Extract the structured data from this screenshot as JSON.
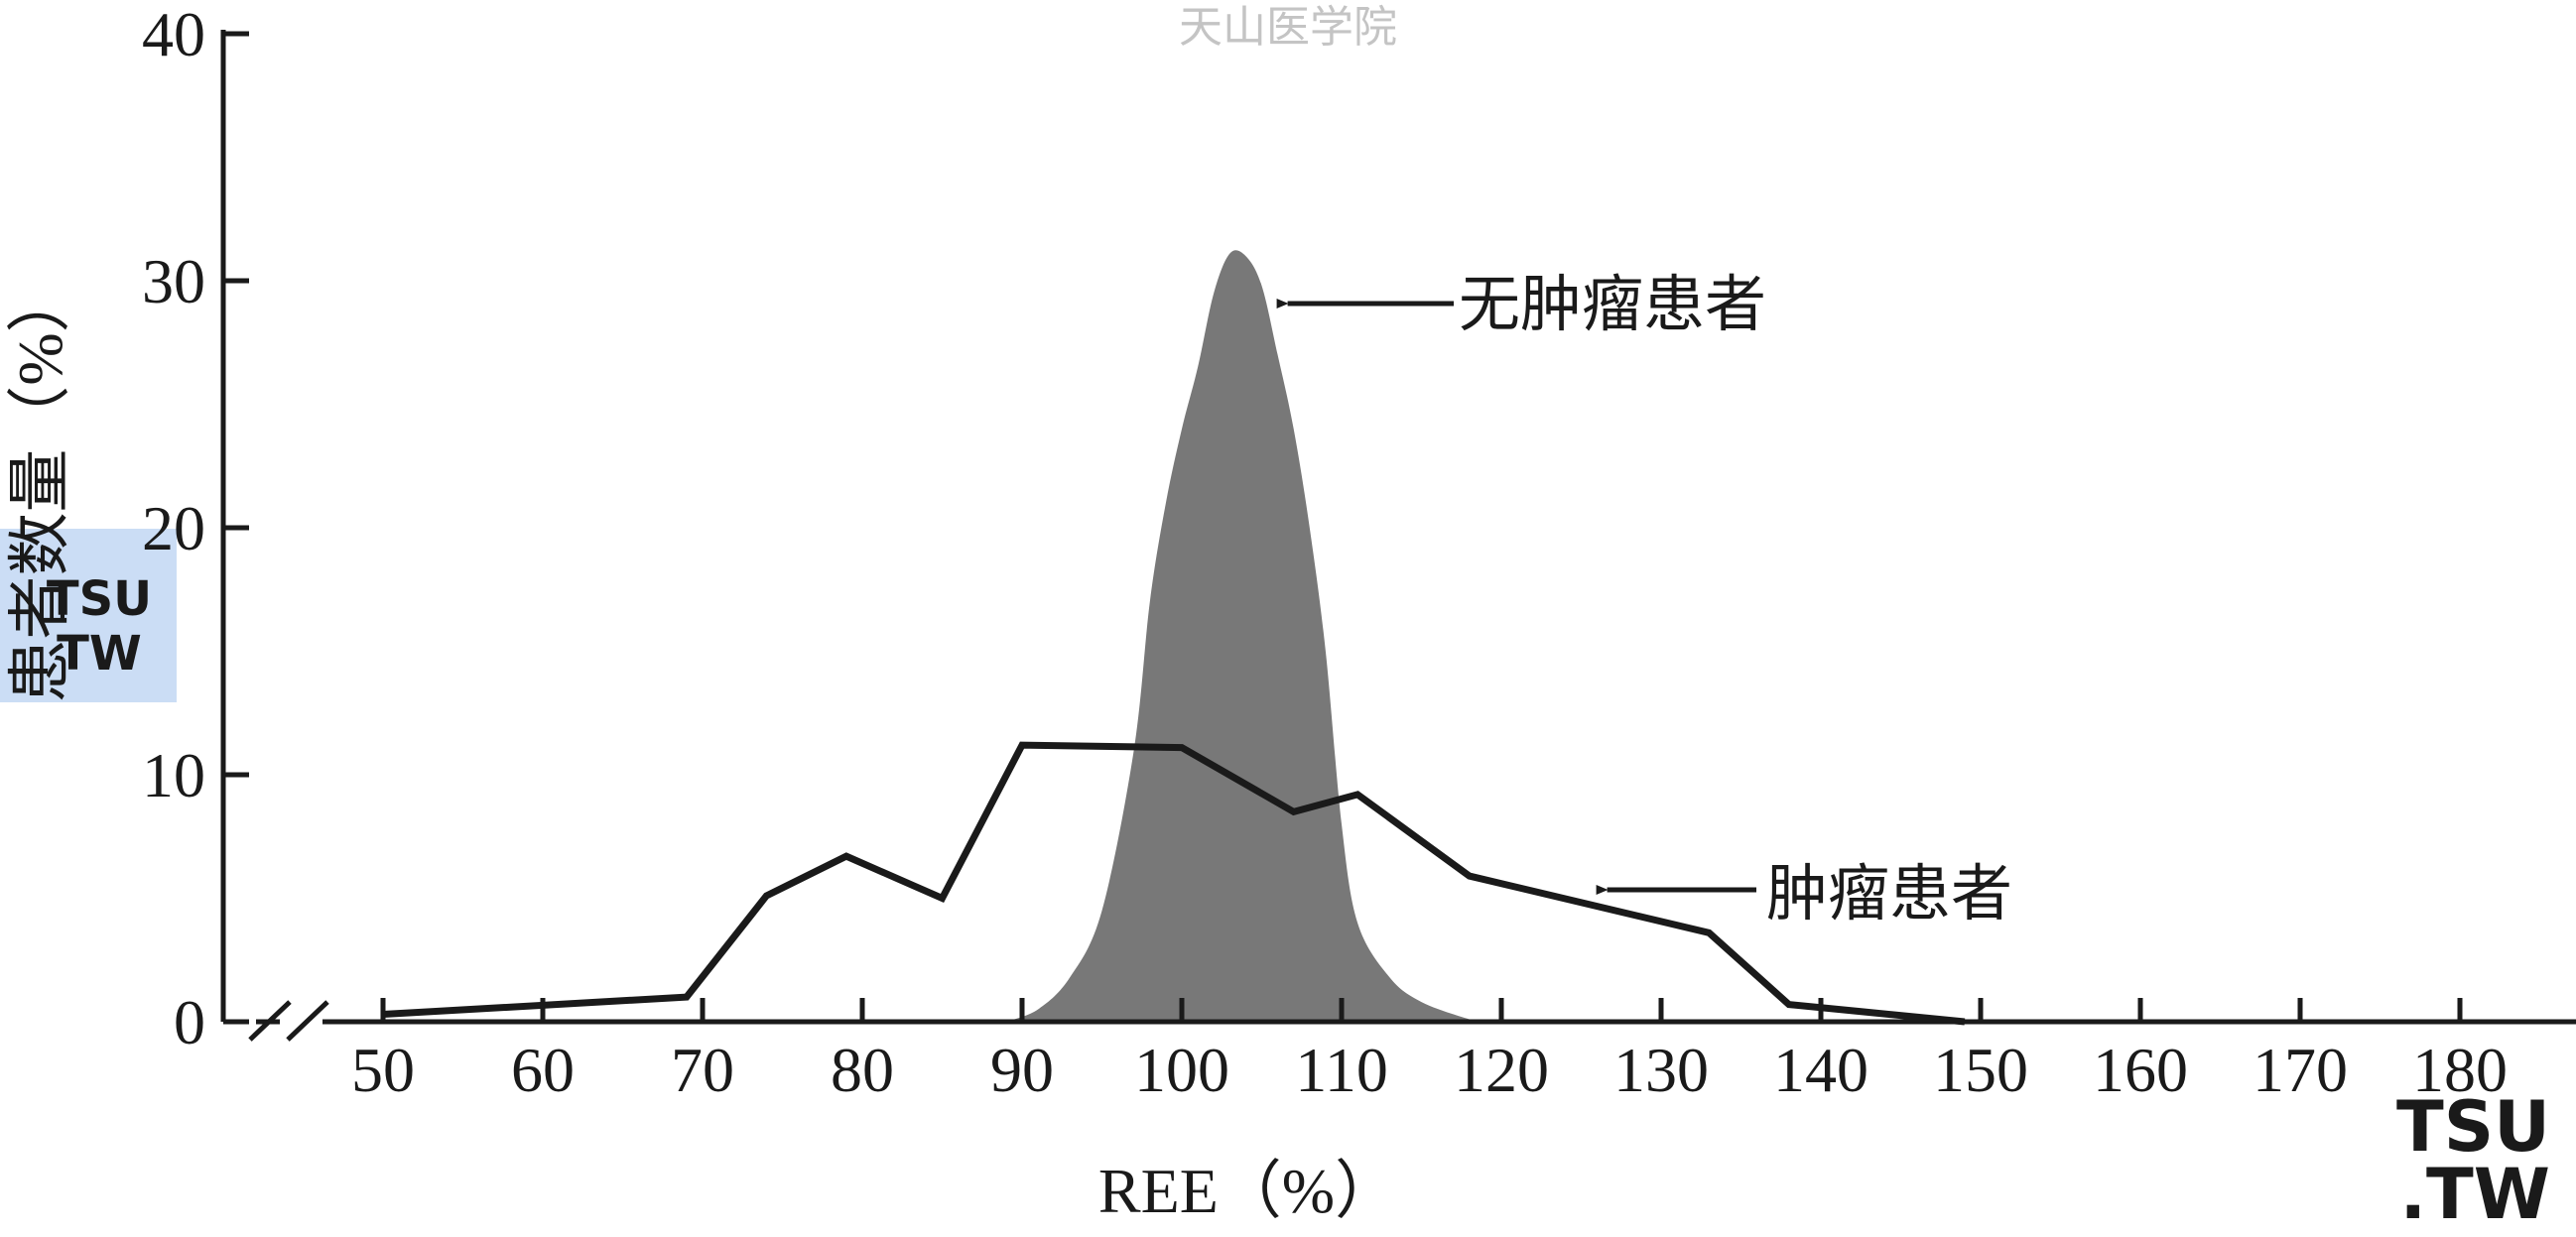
{
  "watermark": {
    "text": "天山医学院"
  },
  "chart_data": {
    "type": "line",
    "x_axis": {
      "label": "REE（%）",
      "ticks": [
        50,
        60,
        70,
        80,
        90,
        100,
        110,
        120,
        130,
        140,
        150,
        160,
        170,
        180
      ],
      "range": [
        40,
        183
      ],
      "axis_break": true
    },
    "y_axis": {
      "label": "患者数量（%）",
      "ticks": [
        0,
        10,
        20,
        30,
        40
      ],
      "range": [
        0,
        40
      ]
    },
    "grid": false,
    "series": [
      {
        "name": "肿瘤患者",
        "style": "line",
        "color": "#1a1a1a",
        "points": [
          [
            50,
            0.3
          ],
          [
            69,
            1.0
          ],
          [
            74,
            5.1
          ],
          [
            79,
            6.7
          ],
          [
            85,
            5.0
          ],
          [
            90,
            11.2
          ],
          [
            100,
            11.1
          ],
          [
            107,
            8.5
          ],
          [
            111,
            9.2
          ],
          [
            118,
            5.9
          ],
          [
            133,
            3.6
          ],
          [
            138,
            0.7
          ],
          [
            149,
            0.0
          ]
        ]
      },
      {
        "name": "无肿瘤患者",
        "style": "area",
        "color": "#787878",
        "points": [
          [
            89,
            0
          ],
          [
            91,
            0.5
          ],
          [
            93,
            1.8
          ],
          [
            95,
            4.5
          ],
          [
            97,
            11
          ],
          [
            98,
            17
          ],
          [
            99,
            21
          ],
          [
            100,
            24
          ],
          [
            101,
            26.5
          ],
          [
            102,
            29.5
          ],
          [
            103,
            31.1
          ],
          [
            104,
            31.0
          ],
          [
            105,
            29.8
          ],
          [
            106,
            27
          ],
          [
            107,
            24
          ],
          [
            108,
            20
          ],
          [
            109,
            15
          ],
          [
            110,
            8
          ],
          [
            111,
            4
          ],
          [
            113,
            1.8
          ],
          [
            115,
            0.8
          ],
          [
            118,
            0.1
          ],
          [
            119,
            0
          ]
        ]
      }
    ],
    "annotations": [
      {
        "text": "无肿瘤患者",
        "points_to": [
          106,
          29.5
        ]
      },
      {
        "text": "肿瘤患者",
        "points_to": [
          126,
          5.4
        ]
      }
    ]
  },
  "logos": {
    "tsu_left": [
      "TSU",
      "TW"
    ],
    "tsu_right": [
      "TSU",
      ".TW"
    ]
  }
}
